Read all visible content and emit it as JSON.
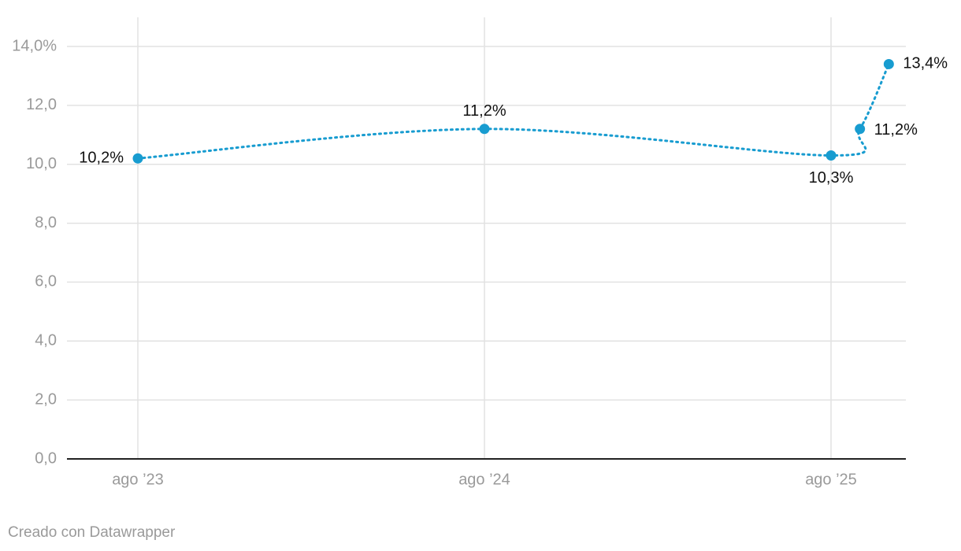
{
  "chart_data": {
    "type": "line",
    "x": [
      "2023-08",
      "2024-08",
      "2025-08",
      "2025-09",
      "2025-10"
    ],
    "series": [
      {
        "color": "#189cd0",
        "values": [
          10.2,
          11.2,
          10.3,
          11.2,
          13.4
        ],
        "value_labels": [
          "10,2%",
          "11,2%",
          "10,3%",
          "11,2%",
          "13,4%"
        ]
      }
    ],
    "xlim": [
      "2023-05",
      "2025-11"
    ],
    "xticks": [
      {
        "value": "2023-08",
        "label": "ago ’23"
      },
      {
        "value": "2024-08",
        "label": "ago ’24"
      },
      {
        "value": "2025-08",
        "label": "ago ’25"
      }
    ],
    "ylim": [
      0,
      14
    ],
    "yticks": [
      {
        "value": 0,
        "label": "0,0"
      },
      {
        "value": 2,
        "label": "2,0"
      },
      {
        "value": 4,
        "label": "4,0"
      },
      {
        "value": 6,
        "label": "6,0"
      },
      {
        "value": 8,
        "label": "8,0"
      },
      {
        "value": 10,
        "label": "10,0"
      },
      {
        "value": 12,
        "label": "12,0"
      },
      {
        "value": 14,
        "label": "14,0%"
      }
    ],
    "grid": true,
    "credit": "Creado con Datawrapper"
  }
}
